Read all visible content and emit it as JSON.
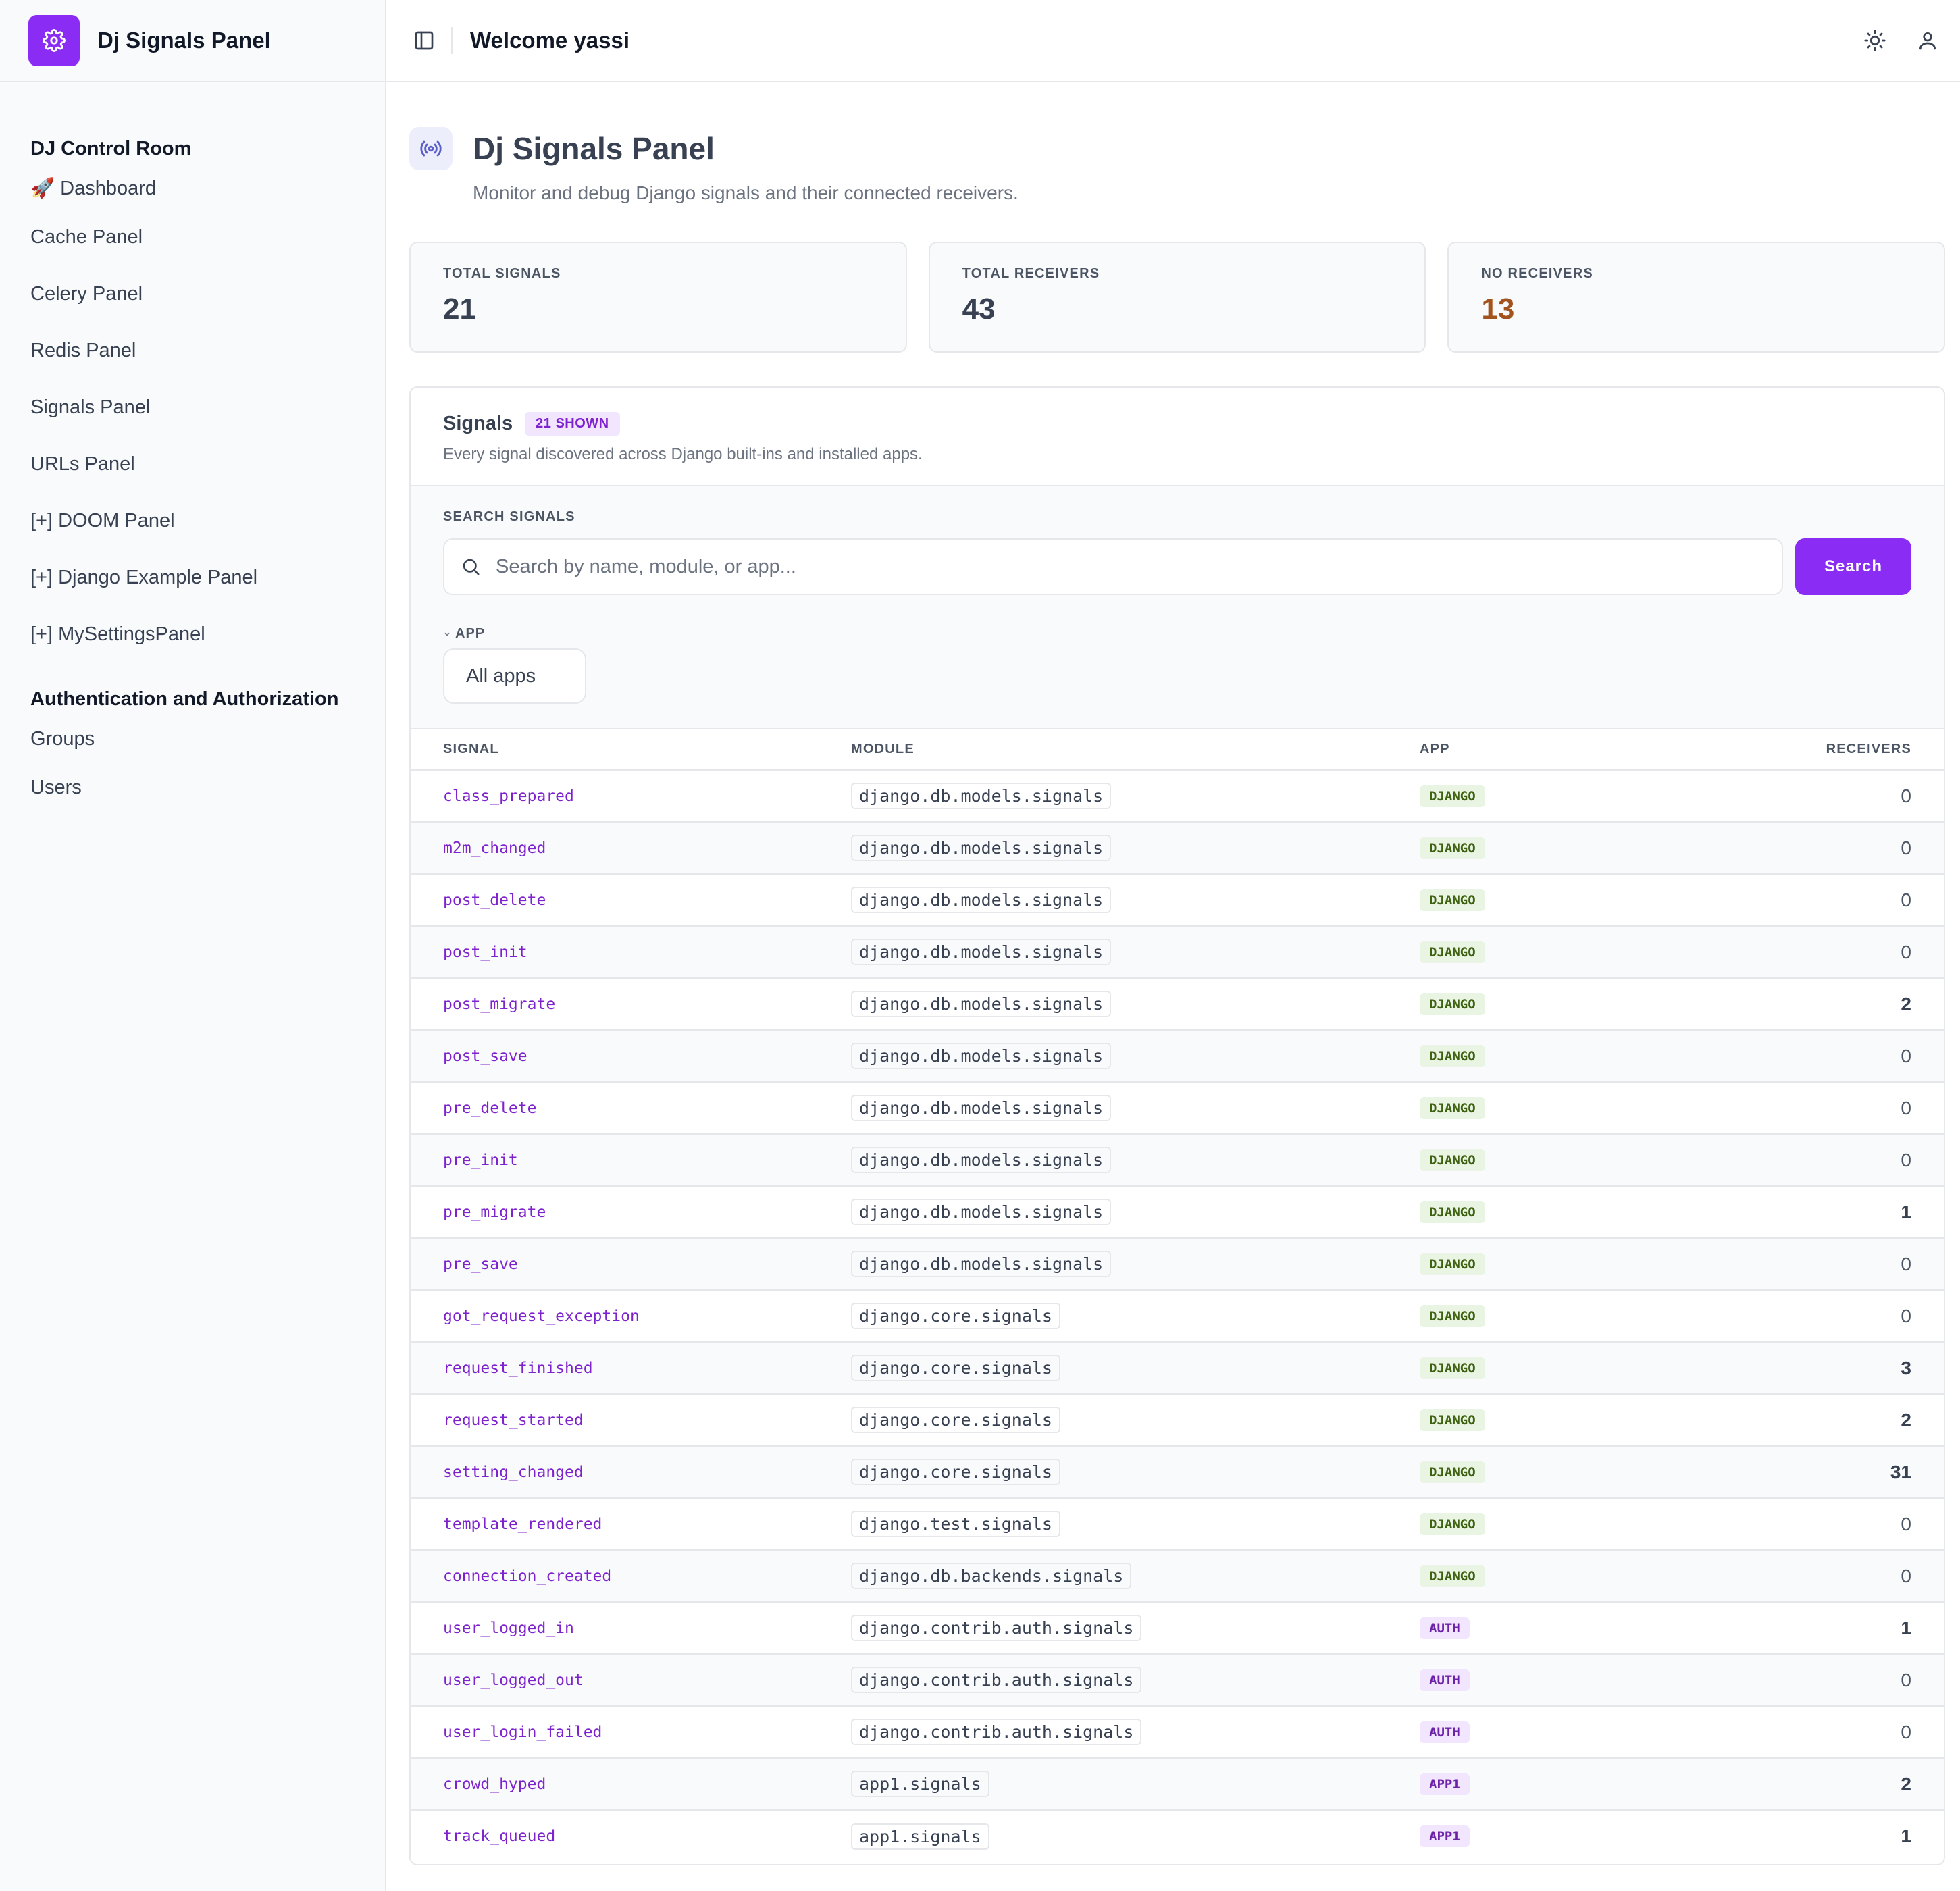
{
  "brand": {
    "name": "Dj Signals Panel",
    "logo_icon": "gear-icon",
    "accent": "#8b2cf5"
  },
  "topbar": {
    "welcome": "Welcome yassi"
  },
  "sidebar": {
    "sections": [
      {
        "title": "DJ Control Room",
        "items": [
          "🚀 Dashboard",
          "Cache Panel",
          "Celery Panel",
          "Redis Panel",
          "Signals Panel",
          "URLs Panel",
          "[+] DOOM Panel",
          "[+] Django Example Panel",
          "[+] MySettingsPanel"
        ]
      },
      {
        "title": "Authentication and Authorization",
        "items": [
          "Groups",
          "Users"
        ]
      }
    ]
  },
  "page": {
    "title": "Dj Signals Panel",
    "subtitle": "Monitor and debug Django signals and their connected receivers."
  },
  "stats": [
    {
      "label": "TOTAL SIGNALS",
      "value": "21"
    },
    {
      "label": "TOTAL RECEIVERS",
      "value": "43"
    },
    {
      "label": "NO RECEIVERS",
      "value": "13",
      "color": "#a3541e"
    }
  ],
  "signals_card": {
    "title": "Signals",
    "badge": "21 SHOWN",
    "description": "Every signal discovered across Django built-ins and installed apps.",
    "search_label": "SEARCH SIGNALS",
    "search_placeholder": "Search by name, module, or app...",
    "search_value": "",
    "search_button": "Search",
    "app_filter_label": "APP",
    "app_filter_value": "All apps",
    "columns": [
      "SIGNAL",
      "MODULE",
      "APP",
      "RECEIVERS"
    ],
    "rows": [
      {
        "signal": "class_prepared",
        "module": "django.db.models.signals",
        "app": "DJANGO",
        "receivers": "0"
      },
      {
        "signal": "m2m_changed",
        "module": "django.db.models.signals",
        "app": "DJANGO",
        "receivers": "0"
      },
      {
        "signal": "post_delete",
        "module": "django.db.models.signals",
        "app": "DJANGO",
        "receivers": "0"
      },
      {
        "signal": "post_init",
        "module": "django.db.models.signals",
        "app": "DJANGO",
        "receivers": "0"
      },
      {
        "signal": "post_migrate",
        "module": "django.db.models.signals",
        "app": "DJANGO",
        "receivers": "2"
      },
      {
        "signal": "post_save",
        "module": "django.db.models.signals",
        "app": "DJANGO",
        "receivers": "0"
      },
      {
        "signal": "pre_delete",
        "module": "django.db.models.signals",
        "app": "DJANGO",
        "receivers": "0"
      },
      {
        "signal": "pre_init",
        "module": "django.db.models.signals",
        "app": "DJANGO",
        "receivers": "0"
      },
      {
        "signal": "pre_migrate",
        "module": "django.db.models.signals",
        "app": "DJANGO",
        "receivers": "1"
      },
      {
        "signal": "pre_save",
        "module": "django.db.models.signals",
        "app": "DJANGO",
        "receivers": "0"
      },
      {
        "signal": "got_request_exception",
        "module": "django.core.signals",
        "app": "DJANGO",
        "receivers": "0"
      },
      {
        "signal": "request_finished",
        "module": "django.core.signals",
        "app": "DJANGO",
        "receivers": "3"
      },
      {
        "signal": "request_started",
        "module": "django.core.signals",
        "app": "DJANGO",
        "receivers": "2"
      },
      {
        "signal": "setting_changed",
        "module": "django.core.signals",
        "app": "DJANGO",
        "receivers": "31"
      },
      {
        "signal": "template_rendered",
        "module": "django.test.signals",
        "app": "DJANGO",
        "receivers": "0"
      },
      {
        "signal": "connection_created",
        "module": "django.db.backends.signals",
        "app": "DJANGO",
        "receivers": "0"
      },
      {
        "signal": "user_logged_in",
        "module": "django.contrib.auth.signals",
        "app": "AUTH",
        "receivers": "1"
      },
      {
        "signal": "user_logged_out",
        "module": "django.contrib.auth.signals",
        "app": "AUTH",
        "receivers": "0"
      },
      {
        "signal": "user_login_failed",
        "module": "django.contrib.auth.signals",
        "app": "AUTH",
        "receivers": "0"
      },
      {
        "signal": "crowd_hyped",
        "module": "app1.signals",
        "app": "APP1",
        "receivers": "2"
      },
      {
        "signal": "track_queued",
        "module": "app1.signals",
        "app": "APP1",
        "receivers": "1"
      }
    ]
  }
}
